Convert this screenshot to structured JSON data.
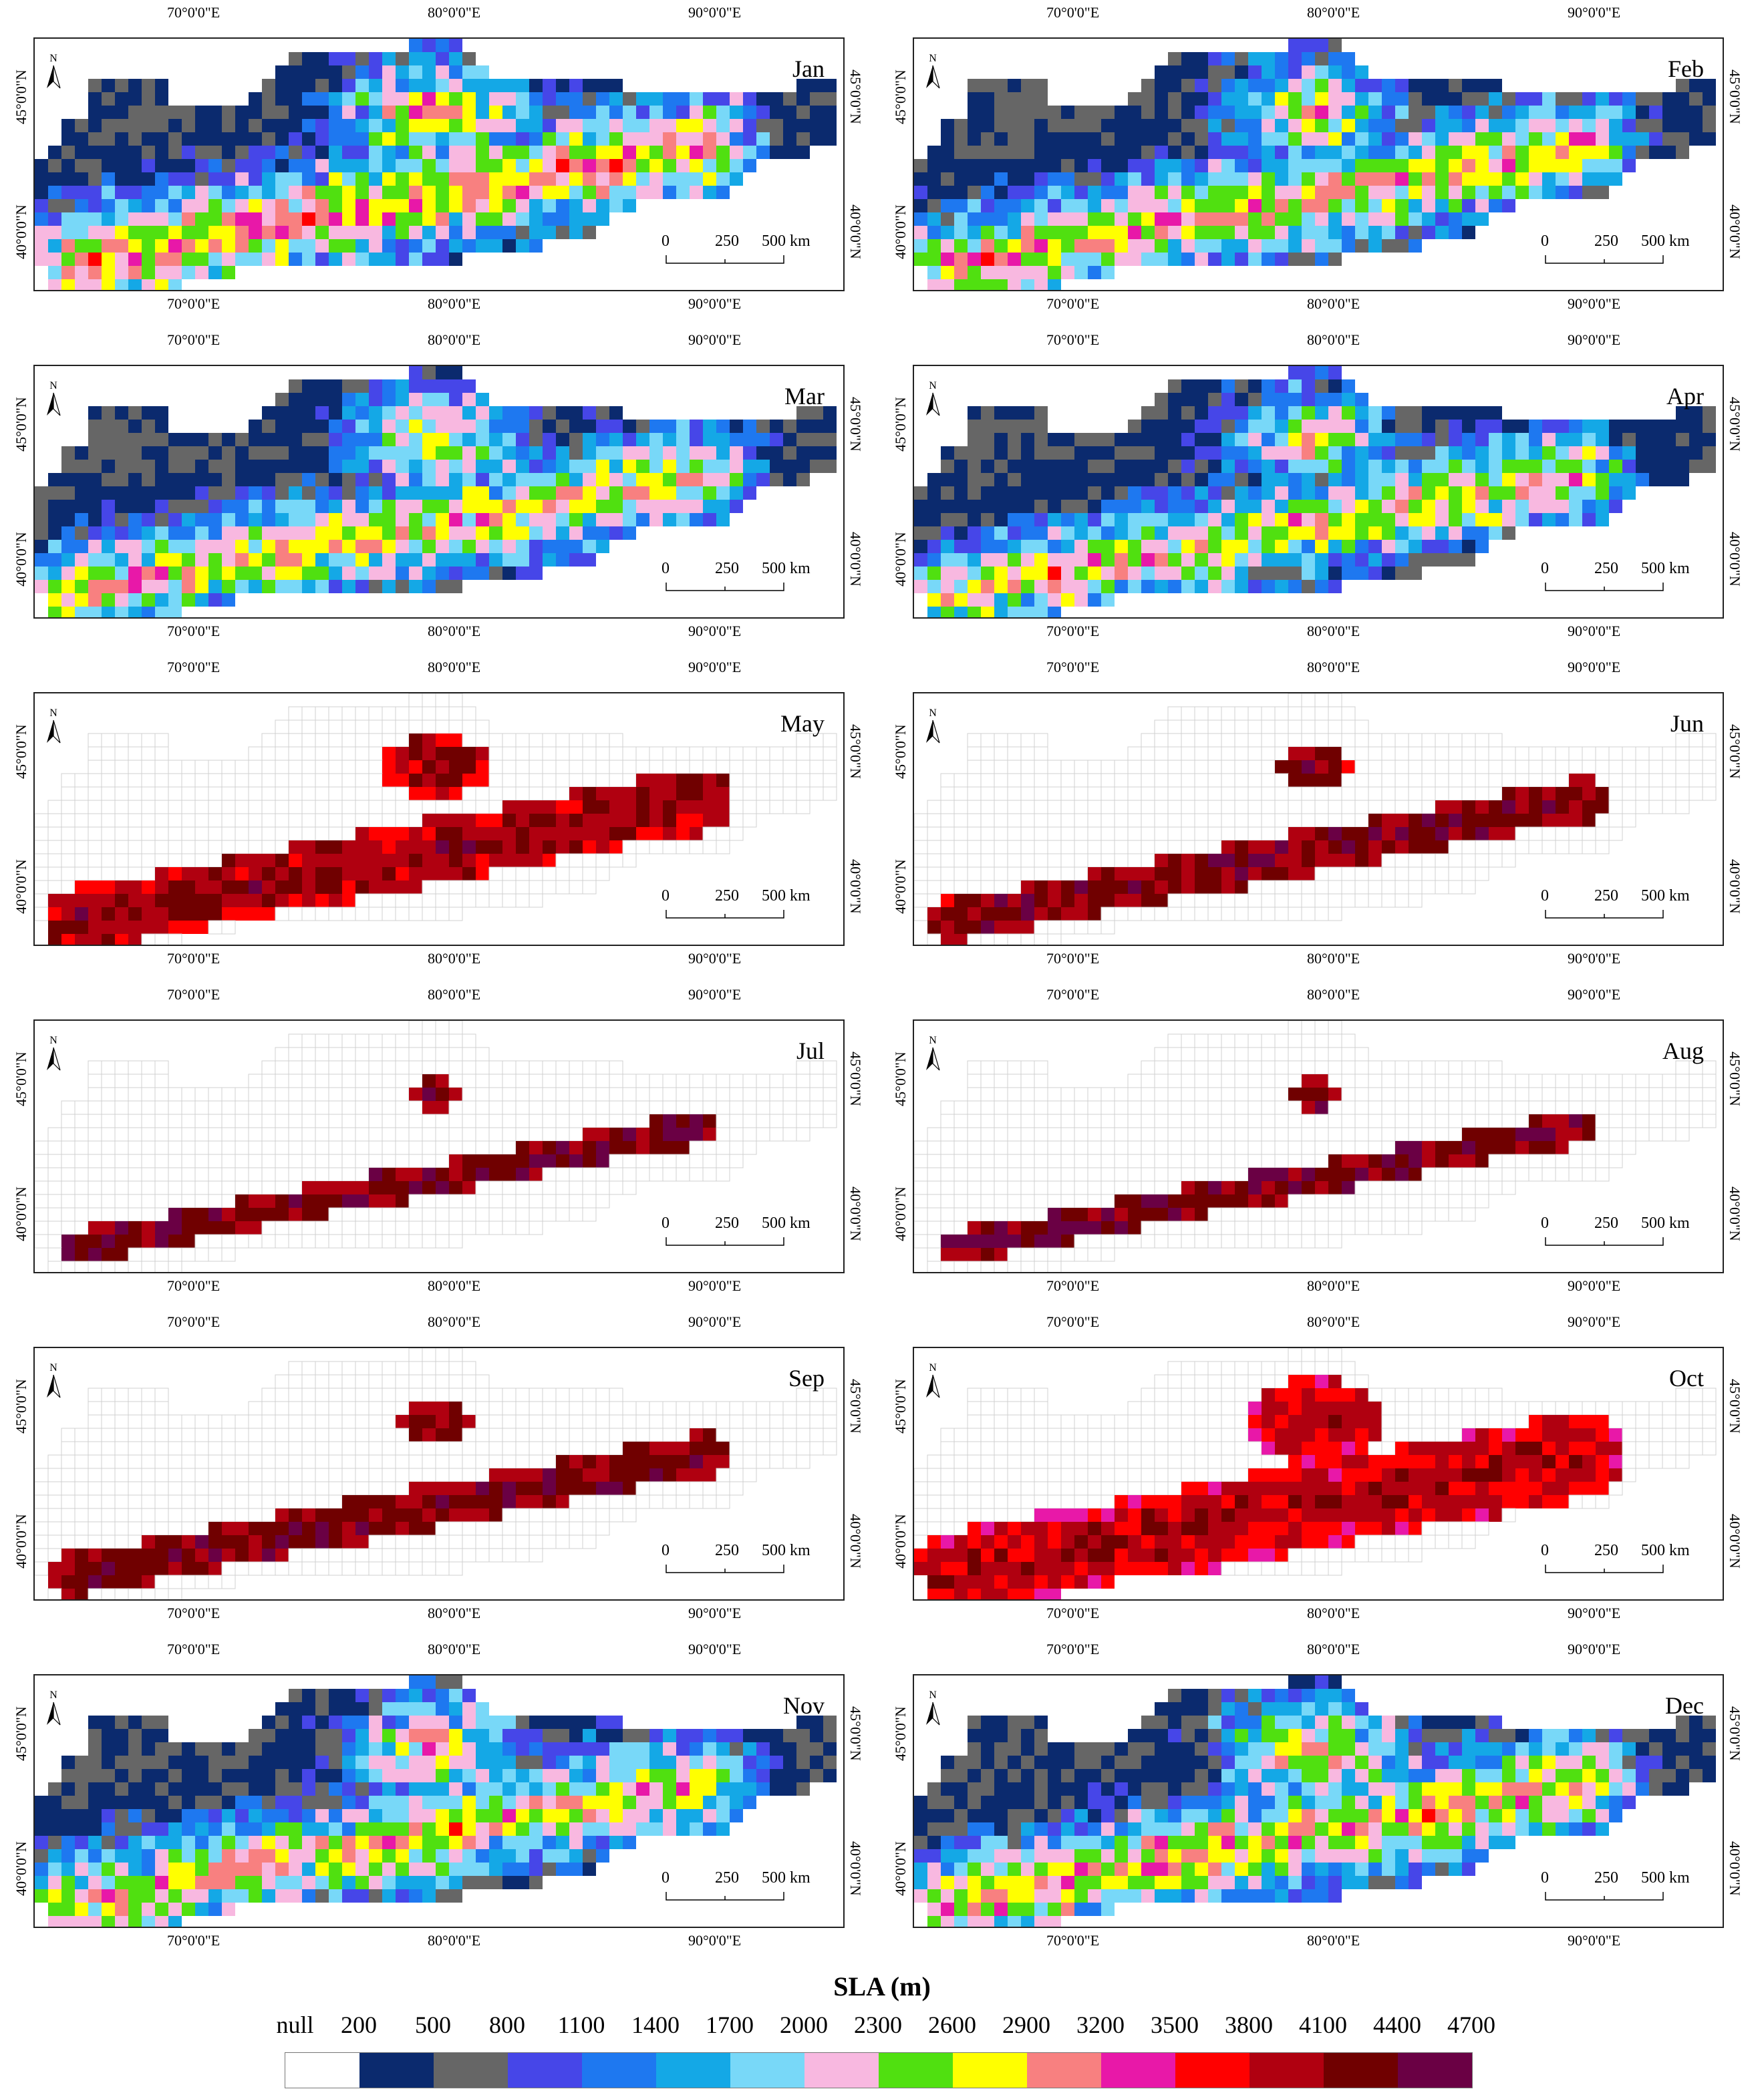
{
  "months": [
    "Jan",
    "Feb",
    "Mar",
    "Apr",
    "May",
    "Jun",
    "Jul",
    "Aug",
    "Sep",
    "Oct",
    "Nov",
    "Dec"
  ],
  "lon_ticks": [
    "70°0'0\"E",
    "80°0'0\"E",
    "90°0'0\"E"
  ],
  "lat_ticks": [
    "45°0'0\"N",
    "40°0'0\"N"
  ],
  "north_label": "N",
  "scale_labels": [
    "0",
    "250",
    "500 km"
  ],
  "legend": {
    "title": "SLA (m)",
    "labels": [
      "null",
      "200",
      "500",
      "800",
      "1100",
      "1400",
      "1700",
      "2000",
      "2300",
      "2600",
      "2900",
      "3200",
      "3500",
      "3800",
      "4100",
      "4400",
      "4700"
    ],
    "colors": [
      "#ffffff",
      "#0b2a6e",
      "#666666",
      "#4646e8",
      "#1e78f0",
      "#14a8e6",
      "#78d8f8",
      "#f8b8e0",
      "#50e010",
      "#ffff00",
      "#f88080",
      "#e818a8",
      "#ff0000",
      "#b00010",
      "#700000",
      "#6a0044"
    ]
  }
}
